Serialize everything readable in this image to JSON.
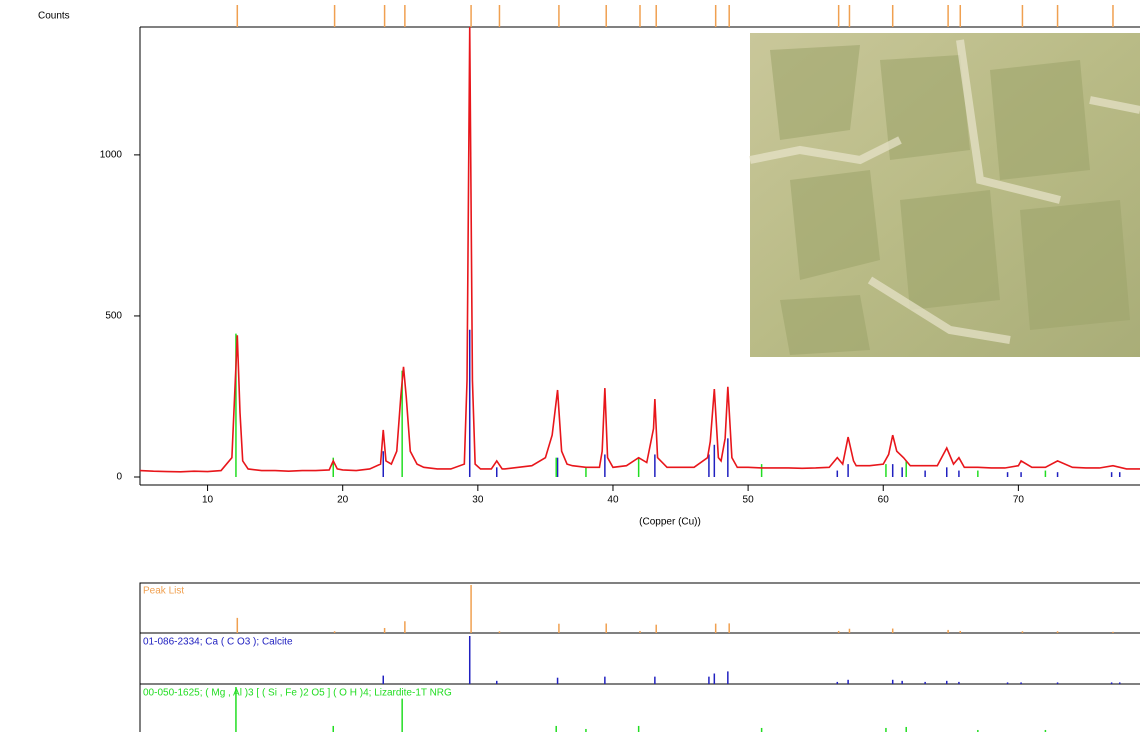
{
  "chart_data": {
    "type": "xrd",
    "y_label": "Counts",
    "x_label": "(Copper (Cu))",
    "xlim": [
      5,
      79
    ],
    "ylim": [
      0,
      1397
    ],
    "xticks": [
      10,
      20,
      30,
      40,
      50,
      60,
      70
    ],
    "yticks": [
      0,
      500,
      1000
    ],
    "series": [
      {
        "type": "line",
        "color": "#e8161b",
        "x": [
          5,
          6,
          7,
          8,
          9,
          10,
          11,
          11.8,
          12.0,
          12.2,
          12.4,
          12.6,
          13,
          14,
          15,
          16,
          17,
          18,
          19,
          19.3,
          19.6,
          20,
          21,
          22,
          22.8,
          23.0,
          23.2,
          23.6,
          24.0,
          24.3,
          24.5,
          24.7,
          25.0,
          25.5,
          26,
          27,
          28,
          29.0,
          29.2,
          29.4,
          29.6,
          29.8,
          30.2,
          31,
          31.4,
          31.8,
          32,
          33,
          34,
          35,
          35.5,
          35.9,
          36.2,
          36.6,
          37,
          38,
          39,
          39.2,
          39.4,
          39.6,
          40,
          41,
          41.9,
          42.5,
          43.0,
          43.1,
          43.3,
          44,
          45,
          46,
          47.0,
          47.2,
          47.5,
          47.8,
          48.0,
          48.3,
          48.5,
          48.8,
          49.2,
          50,
          51,
          52,
          53,
          54,
          55,
          56,
          56.6,
          57.0,
          57.4,
          57.8,
          58,
          59,
          60,
          60.4,
          60.7,
          61.0,
          61.5,
          62,
          63,
          64,
          64.7,
          65.2,
          65.6,
          66,
          67,
          68,
          69,
          70,
          70.2,
          71,
          72,
          72.9,
          74,
          75,
          76,
          77,
          78,
          79
        ],
        "values": [
          20,
          18,
          17,
          16,
          18,
          17,
          20,
          60,
          250,
          440,
          200,
          50,
          25,
          20,
          20,
          18,
          20,
          20,
          22,
          50,
          25,
          22,
          20,
          25,
          40,
          146,
          50,
          40,
          80,
          250,
          342,
          250,
          80,
          40,
          30,
          25,
          25,
          40,
          300,
          1397,
          300,
          40,
          25,
          25,
          50,
          25,
          25,
          30,
          35,
          60,
          130,
          270,
          80,
          40,
          35,
          30,
          30,
          80,
          276,
          60,
          30,
          35,
          60,
          45,
          150,
          242,
          60,
          30,
          30,
          30,
          60,
          110,
          273,
          60,
          50,
          120,
          280,
          60,
          30,
          30,
          28,
          28,
          28,
          27,
          28,
          30,
          60,
          40,
          124,
          50,
          35,
          35,
          40,
          70,
          130,
          80,
          60,
          35,
          35,
          35,
          90,
          40,
          60,
          30,
          30,
          28,
          28,
          35,
          50,
          30,
          30,
          50,
          30,
          28,
          28,
          35,
          25,
          25
        ]
      },
      {
        "type": "stick",
        "name": "Peak List",
        "color": "#f0a050",
        "x": [
          12.2,
          19.4,
          23.1,
          24.6,
          29.5,
          31.6,
          36.0,
          39.5,
          42.0,
          43.2,
          47.6,
          48.6,
          56.7,
          57.5,
          60.7,
          64.8,
          65.7,
          70.3,
          72.9,
          77.0
        ],
        "values": [
          440,
          50,
          146,
          342,
          1397,
          50,
          270,
          276,
          60,
          242,
          273,
          280,
          60,
          124,
          130,
          90,
          60,
          50,
          50,
          35
        ]
      },
      {
        "type": "stick",
        "name": "01-086-2334; Ca ( C O3 ); Calcite",
        "color": "#2020c0",
        "x": [
          23.0,
          29.4,
          31.4,
          35.9,
          39.4,
          43.1,
          47.1,
          47.5,
          48.5,
          56.6,
          57.4,
          60.7,
          61.4,
          63.1,
          64.7,
          65.6,
          69.2,
          70.2,
          72.9,
          76.9,
          77.5
        ],
        "values": [
          80,
          457,
          30,
          60,
          70,
          70,
          70,
          100,
          120,
          20,
          40,
          40,
          30,
          20,
          30,
          20,
          15,
          15,
          15,
          15,
          15
        ]
      },
      {
        "type": "stick",
        "name": "00-050-1625; ( Mg , Al )3 [ ( Si , Fe )2 O5 ] ( O H )4; Lizardite-1T NRG",
        "color": "#22dd22",
        "x": [
          12.1,
          19.3,
          24.4,
          35.8,
          38.0,
          41.9,
          51.0,
          60.2,
          61.7,
          67.0,
          72.0
        ],
        "values": [
          445,
          60,
          330,
          60,
          30,
          60,
          40,
          40,
          50,
          20,
          20
        ]
      }
    ]
  }
}
